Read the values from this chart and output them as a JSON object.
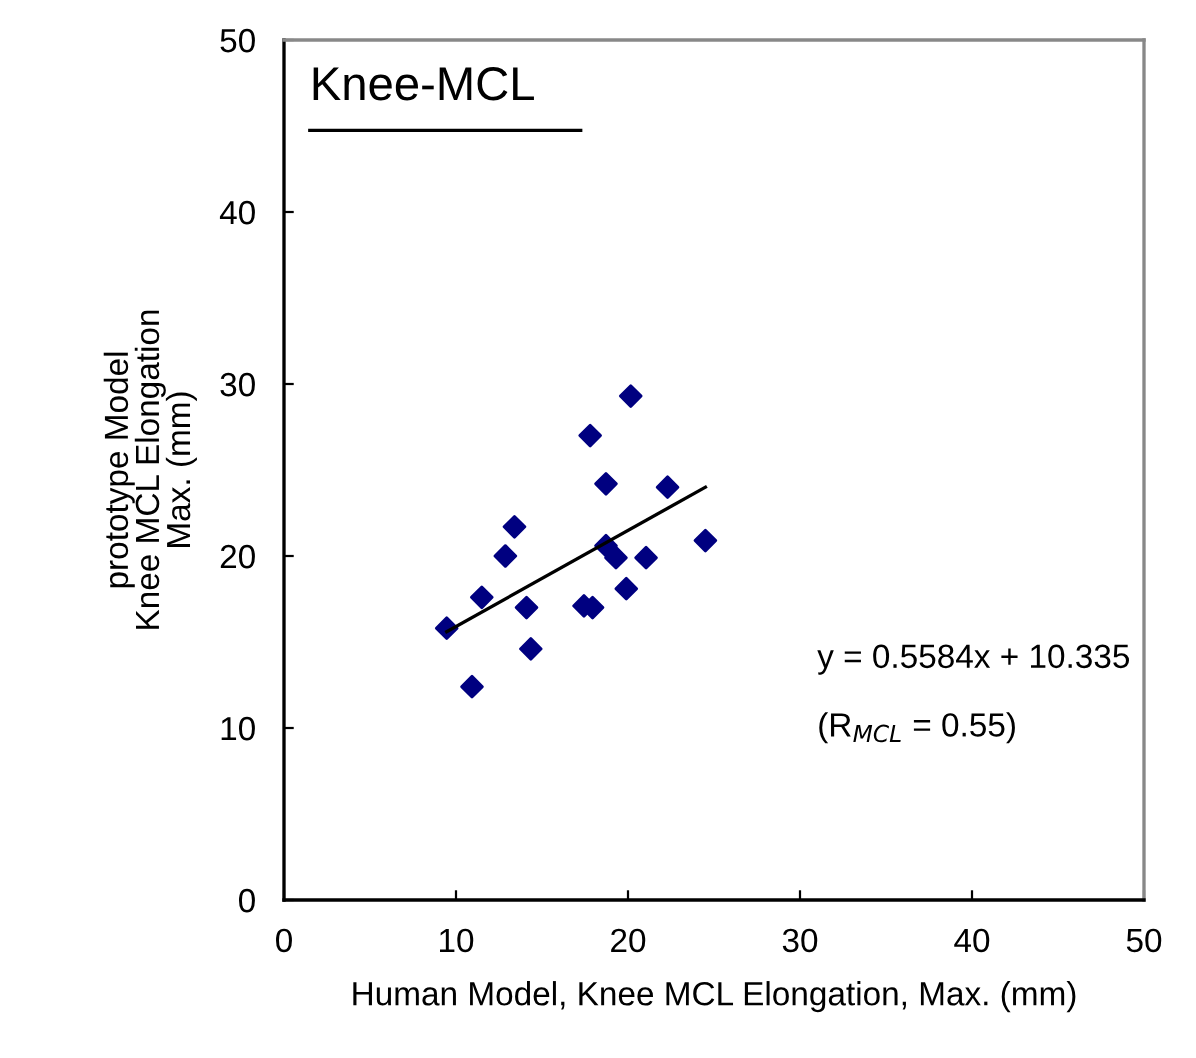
{
  "chart_data": {
    "type": "scatter",
    "title": "Knee-MCL",
    "xlabel": "Human Model, Knee MCL Elongation, Max. (mm)",
    "ylabel": "prototype Model\nKnee MCL Elongation\nMax. (mm)",
    "x": [
      9.46,
      10.93,
      11.5,
      12.87,
      13.4,
      14.1,
      14.35,
      17.44,
      17.94,
      17.8,
      18.72,
      18.72,
      19.3,
      20.16,
      19.9,
      21.05,
      22.3,
      24.5
    ],
    "series": [
      {
        "color": "#000080",
        "marker": "diamond",
        "values": [
          15.8,
          12.4,
          17.6,
          20.0,
          21.7,
          17.0,
          14.6,
          17.1,
          17.0,
          27.0,
          24.2,
          20.6,
          19.9,
          29.3,
          18.1,
          19.9,
          24.0,
          20.9
        ]
      },
      {
        "type": "line",
        "color": "#000000",
        "marker": "none",
        "x": [
          9.46,
          24.5
        ],
        "values": [
          15.6,
          24.0
        ]
      }
    ],
    "annotations": [
      "y = 0.5584x + 10.335",
      "(R$_{MCL}$ = 0.55)"
    ],
    "xlim": [
      0,
      50
    ],
    "ylim": [
      0,
      50
    ],
    "xticks": [
      0,
      10,
      20,
      30,
      40,
      50
    ],
    "yticks": [
      0,
      10,
      20,
      30,
      40,
      50
    ],
    "grid": false,
    "legend": false
  }
}
